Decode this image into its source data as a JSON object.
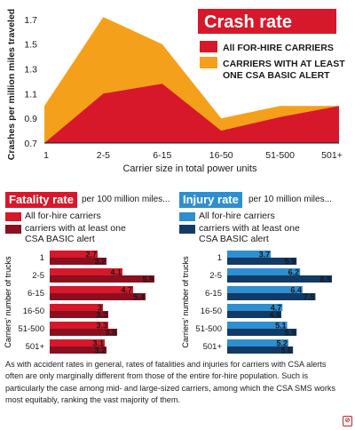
{
  "crash_panel": {
    "title": "Crash rate",
    "legend_red": "All FOR-HIRE CARRIERS",
    "legend_orange_line1": "CARRIERS WITH AT LEAST",
    "legend_orange_line2": "ONE CSA BASIC ALERT"
  },
  "fatality_panel": {
    "title": "Fatality rate",
    "subtitle": "per 100 million miles...",
    "legend_a": "All for-hire carriers",
    "legend_b_line1": "carriers with at least one",
    "legend_b_line2": "CSA BASIC alert"
  },
  "injury_panel": {
    "title": "Injury rate",
    "subtitle": "per 10 million miles...",
    "legend_a": "All for-hire carriers",
    "legend_b_line1": "carriers with at least one",
    "legend_b_line2": "CSA BASIC alert"
  },
  "caption": "As with accident rates in general, rates of fatalities and injuries for carriers with CSA alerts often are only marginally different from those of the entire for-hire population. Such is particularly the case among mid- and large-sized carriers, among which the CSA SMS works most equitably, ranking the vast majority of them.",
  "logo_text": "⊘",
  "colors": {
    "red": "#d7182a",
    "orange": "#f5a01a",
    "darkred": "#8a1020",
    "blue": "#2e8fd0",
    "navy": "#123a66",
    "title_bg": "#d7182a"
  },
  "chart_data": [
    {
      "type": "area",
      "title": "Crash rate",
      "xlabel": "Carrier size in total power units",
      "ylabel": "Crashes per million miles traveled",
      "categories": [
        "1",
        "2-5",
        "6-15",
        "16-50",
        "51-500",
        "501+"
      ],
      "yticks": [
        "0.7",
        "0.9",
        "1.1",
        "1.3",
        "1.5",
        "1.7"
      ],
      "ylim": [
        0.7,
        1.8
      ],
      "series": [
        {
          "name": "CARRIERS WITH AT LEAST ONE CSA BASIC ALERT",
          "values": [
            1.0,
            1.72,
            1.5,
            0.9,
            1.0,
            1.0
          ]
        },
        {
          "name": "All FOR-HIRE CARRIERS",
          "values": [
            0.7,
            1.1,
            1.18,
            0.8,
            0.91,
            1.0
          ]
        }
      ],
      "legend": "top-right"
    },
    {
      "type": "bar",
      "title": "Fatality rate",
      "ylabel": "Carriers' number of trucks",
      "categories": [
        "1",
        "2-5",
        "6-15",
        "16-50",
        "51-500",
        "501+"
      ],
      "series": [
        {
          "name": "All for-hire carriers",
          "values": [
            2.7,
            4.1,
            4.7,
            3,
            3.3,
            3.1
          ]
        },
        {
          "name": "carriers with at least one CSA BASIC alert",
          "values": [
            3.2,
            5.9,
            5.4,
            3.3,
            3.8,
            3.2
          ]
        }
      ],
      "value_labels": [
        [
          "2.7",
          "4.1",
          "4.7",
          "3",
          "3.3",
          "3.1"
        ],
        [
          "3.2",
          "5.9",
          "5.4",
          "3.3",
          "3.8",
          "3.2"
        ]
      ],
      "max": 5.9
    },
    {
      "type": "bar",
      "title": "Injury rate",
      "ylabel": "Carriers' number of trucks",
      "categories": [
        "1",
        "2-5",
        "6-15",
        "16-50",
        "51-500",
        "501+"
      ],
      "series": [
        {
          "name": "All for-hire carriers",
          "values": [
            3.7,
            6.2,
            6.4,
            4.7,
            5.1,
            5.2
          ]
        },
        {
          "name": "carriers with at least one CSA BASIC alert",
          "values": [
            5.9,
            8.9,
            7.5,
            4.6,
            5.9,
            5.6
          ]
        }
      ],
      "value_labels": [
        [
          "3.7",
          "6.2",
          "6.4",
          "4.7",
          "5.1",
          "5.2"
        ],
        [
          "5.9",
          "8.9",
          "7.5",
          "4.6",
          "5.9",
          "5.6"
        ]
      ],
      "max": 8.9
    }
  ]
}
